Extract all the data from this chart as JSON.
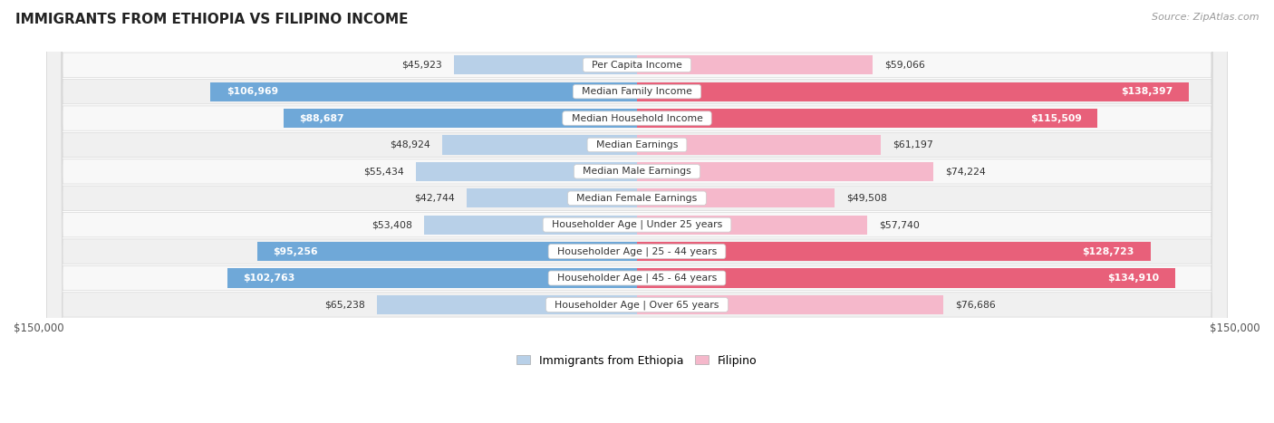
{
  "title": "IMMIGRANTS FROM ETHIOPIA VS FILIPINO INCOME",
  "source": "Source: ZipAtlas.com",
  "categories": [
    "Per Capita Income",
    "Median Family Income",
    "Median Household Income",
    "Median Earnings",
    "Median Male Earnings",
    "Median Female Earnings",
    "Householder Age | Under 25 years",
    "Householder Age | 25 - 44 years",
    "Householder Age | 45 - 64 years",
    "Householder Age | Over 65 years"
  ],
  "ethiopia_values": [
    45923,
    106969,
    88687,
    48924,
    55434,
    42744,
    53408,
    95256,
    102763,
    65238
  ],
  "filipino_values": [
    59066,
    138397,
    115509,
    61197,
    74224,
    49508,
    57740,
    128723,
    134910,
    76686
  ],
  "ethiopia_labels": [
    "$45,923",
    "$106,969",
    "$88,687",
    "$48,924",
    "$55,434",
    "$42,744",
    "$53,408",
    "$95,256",
    "$102,763",
    "$65,238"
  ],
  "filipino_labels": [
    "$59,066",
    "$138,397",
    "$115,509",
    "$61,197",
    "$74,224",
    "$49,508",
    "$57,740",
    "$128,723",
    "$134,910",
    "$76,686"
  ],
  "ethiopia_color_light": "#b8d0e8",
  "ethiopia_color_dark": "#6fa8d8",
  "filipino_color_light": "#f5b8cb",
  "filipino_color_dark": "#e8607a",
  "ethiopia_threshold": 75000,
  "filipino_threshold": 95000,
  "bar_height": 0.72,
  "xlim": 150000,
  "row_colors": [
    "#f8f8f8",
    "#f0f0f0"
  ]
}
